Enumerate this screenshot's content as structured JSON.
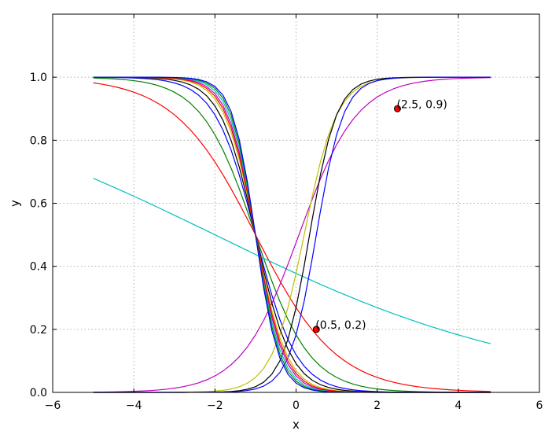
{
  "chart_data": {
    "type": "line",
    "title": "",
    "xlabel": "x",
    "ylabel": "y",
    "xlim": [
      -6,
      6
    ],
    "ylim": [
      0,
      1.2
    ],
    "xticks": [
      -6,
      -4,
      -2,
      0,
      2,
      4,
      6
    ],
    "xtick_labels": [
      "−6",
      "−4",
      "−2",
      "0",
      "2",
      "4",
      "6"
    ],
    "yticks": [
      0.0,
      0.2,
      0.4,
      0.6,
      0.8,
      1.0
    ],
    "ytick_labels": [
      "0.0",
      "0.2",
      "0.4",
      "0.6",
      "0.8",
      "1.0"
    ],
    "grid": true,
    "legend": "none",
    "x_range": [
      -5.0,
      4.8
    ],
    "x_step": 0.2,
    "series_function": "sigmoid",
    "series": [
      {
        "color": "#0000ff",
        "w": -2.0,
        "b": -2.0
      },
      {
        "color": "#008000",
        "w": -1.5,
        "b": -1.5
      },
      {
        "color": "#ff0000",
        "w": -1.0,
        "b": -1.0
      },
      {
        "color": "#00bfbf",
        "w": -0.25,
        "b": -0.5
      },
      {
        "color": "#bf00bf",
        "w": 1.4,
        "b": -0.1
      },
      {
        "color": "#bfbf00",
        "w": 2.5,
        "b": -0.5
      },
      {
        "color": "#000000",
        "w": 3.0,
        "b": -1.0
      },
      {
        "color": "#0000ff",
        "w": 3.0,
        "b": -1.5
      },
      {
        "color": "#000000",
        "w": -2.3,
        "b": -2.3
      },
      {
        "color": "#bfbf00",
        "w": -2.6,
        "b": -2.6
      },
      {
        "color": "#bf00bf",
        "w": -2.9,
        "b": -2.9
      },
      {
        "color": "#00bfbf",
        "w": -3.1,
        "b": -3.1
      },
      {
        "color": "#ff0000",
        "w": -2.75,
        "b": -2.75
      },
      {
        "color": "#008000",
        "w": -3.3,
        "b": -3.3
      },
      {
        "color": "#0000ff",
        "w": -3.5,
        "b": -3.5
      }
    ],
    "points": [
      {
        "x": 0.5,
        "y": 0.2,
        "label": "(0.5, 0.2)",
        "color": "#ff0000"
      },
      {
        "x": 2.5,
        "y": 0.9,
        "label": "(2.5, 0.9)",
        "color": "#ff0000"
      }
    ]
  }
}
